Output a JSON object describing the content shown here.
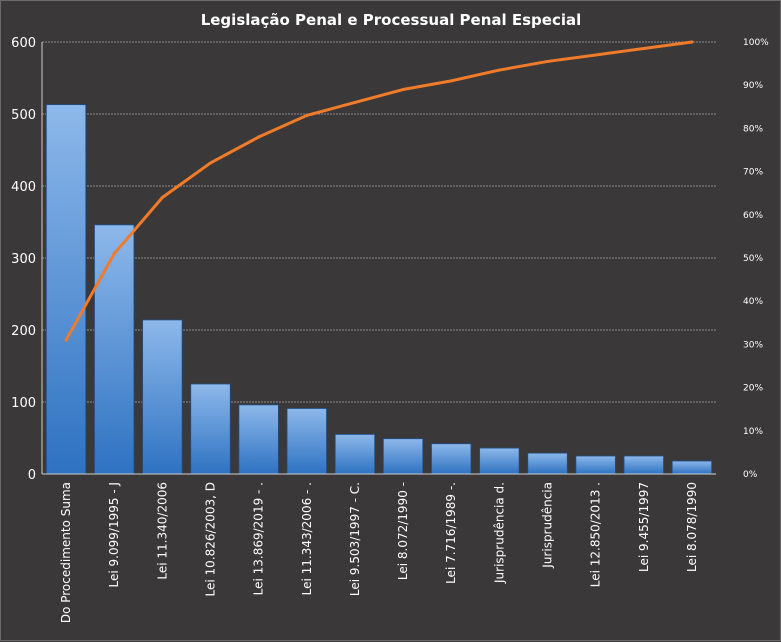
{
  "chart_data": {
    "type": "bar",
    "title": "Legislação Penal e Processual Penal Especial",
    "categories": [
      "Do Procedimento Suma",
      "Lei 9.099/1995 - J",
      "Lei 11.340/2006",
      "Lei 10.826/2003, D",
      "Lei 13.869/2019 - .",
      "Lei 11.343/2006 - .",
      "Lei 9.503/1997 - C.",
      "Lei 8.072/1990 -",
      "Lei 7.716/1989 -.",
      "Jurisprudência d.",
      "Jurisprudência",
      "Lei 12.850/2013 .",
      "Lei 9.455/1997",
      "Lei 8.078/1990"
    ],
    "series": [
      {
        "type": "bar",
        "values": [
          513,
          346,
          214,
          125,
          96,
          91,
          55,
          49,
          42,
          36,
          29,
          25,
          25,
          18
        ]
      },
      {
        "type": "line",
        "axis": "right",
        "values": [
          0.31,
          0.51,
          0.64,
          0.72,
          0.78,
          0.83,
          0.86,
          0.89,
          0.91,
          0.935,
          0.955,
          0.97,
          0.985,
          1.0
        ]
      }
    ],
    "ylim": [
      0,
      600
    ],
    "yticks": [
      "0",
      "100",
      "200",
      "300",
      "400",
      "500",
      "600"
    ],
    "y2lim": [
      0,
      1
    ],
    "y2ticks": [
      "0%",
      "10%",
      "20%",
      "30%",
      "40%",
      "50%",
      "60%",
      "70%",
      "80%",
      "90%",
      "100%"
    ],
    "grid": true,
    "legend": "none",
    "colors": {
      "bar_top": "#8db8ea",
      "bar_bottom": "#2e72c2",
      "line": "#f07b2a",
      "background": "#3a3838"
    }
  }
}
